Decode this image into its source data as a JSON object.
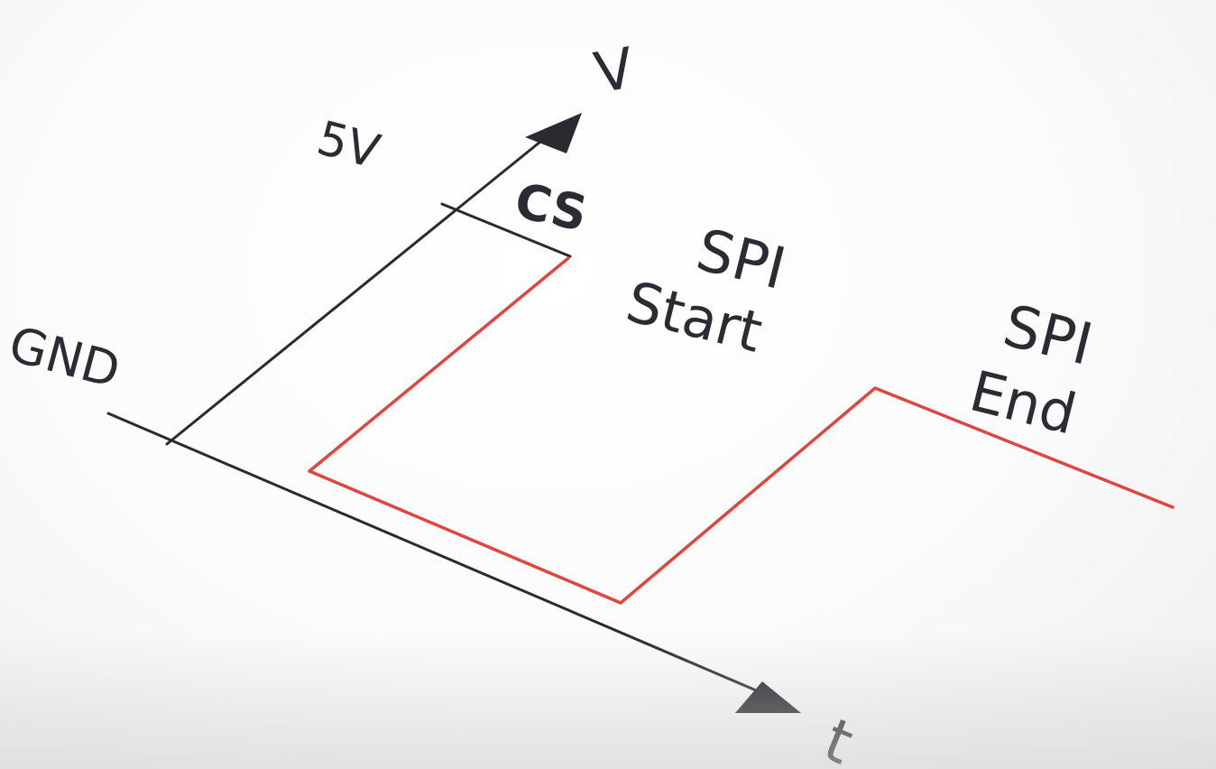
{
  "labels": {
    "v_axis": "V",
    "t_axis": "t",
    "five_volt": "5V",
    "gnd": "GND",
    "cs": "CS",
    "spi_start_line1": "SPI",
    "spi_start_line2": "Start",
    "spi_end_line1": "SPI",
    "spi_end_line2": "End"
  },
  "colors": {
    "ink": "#2b2b33",
    "signal": "#e0463f",
    "paper": "#ffffff"
  }
}
